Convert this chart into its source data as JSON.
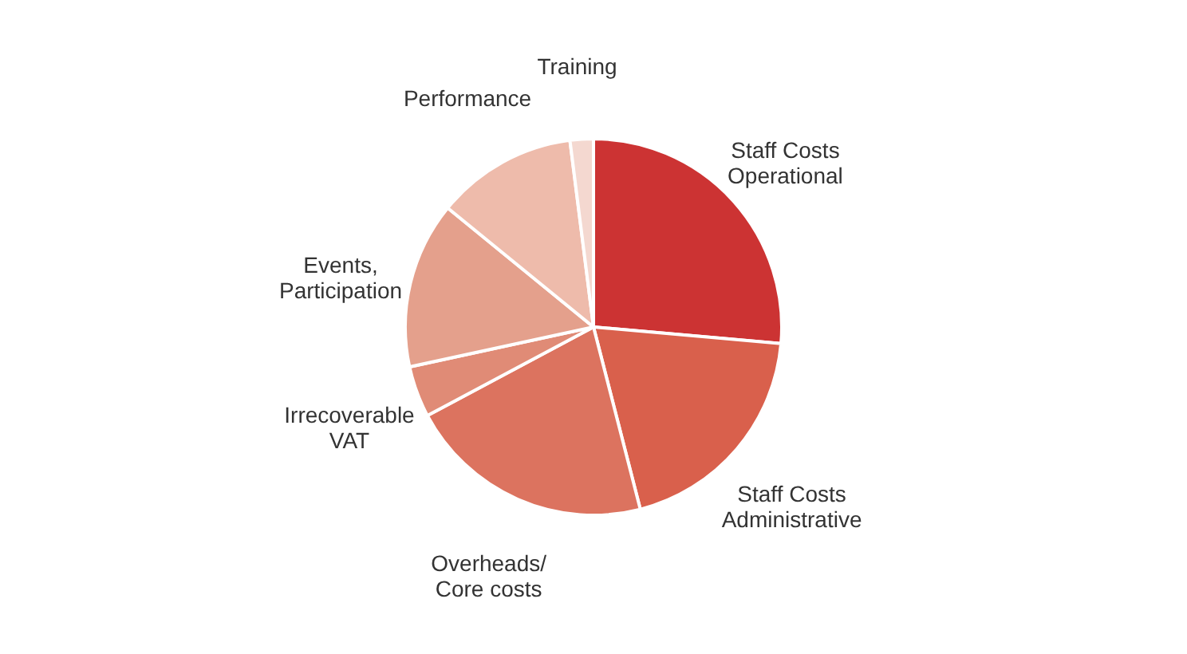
{
  "chart_data": {
    "type": "pie",
    "categories": [
      "Staff Costs\nOperational",
      "Staff Costs\nAdministrative",
      "Overheads/\nCore costs",
      "Irrecoverable\nVAT",
      "Events,\nParticipation",
      "Performance",
      "Training"
    ],
    "values": [
      26.4,
      19.6,
      21.2,
      4.4,
      14.3,
      12.1,
      2.0
    ],
    "colors": [
      "#cc3333",
      "#d9604c",
      "#dc735f",
      "#e08b76",
      "#e4a08c",
      "#eebbab",
      "#f4d8d0"
    ]
  }
}
